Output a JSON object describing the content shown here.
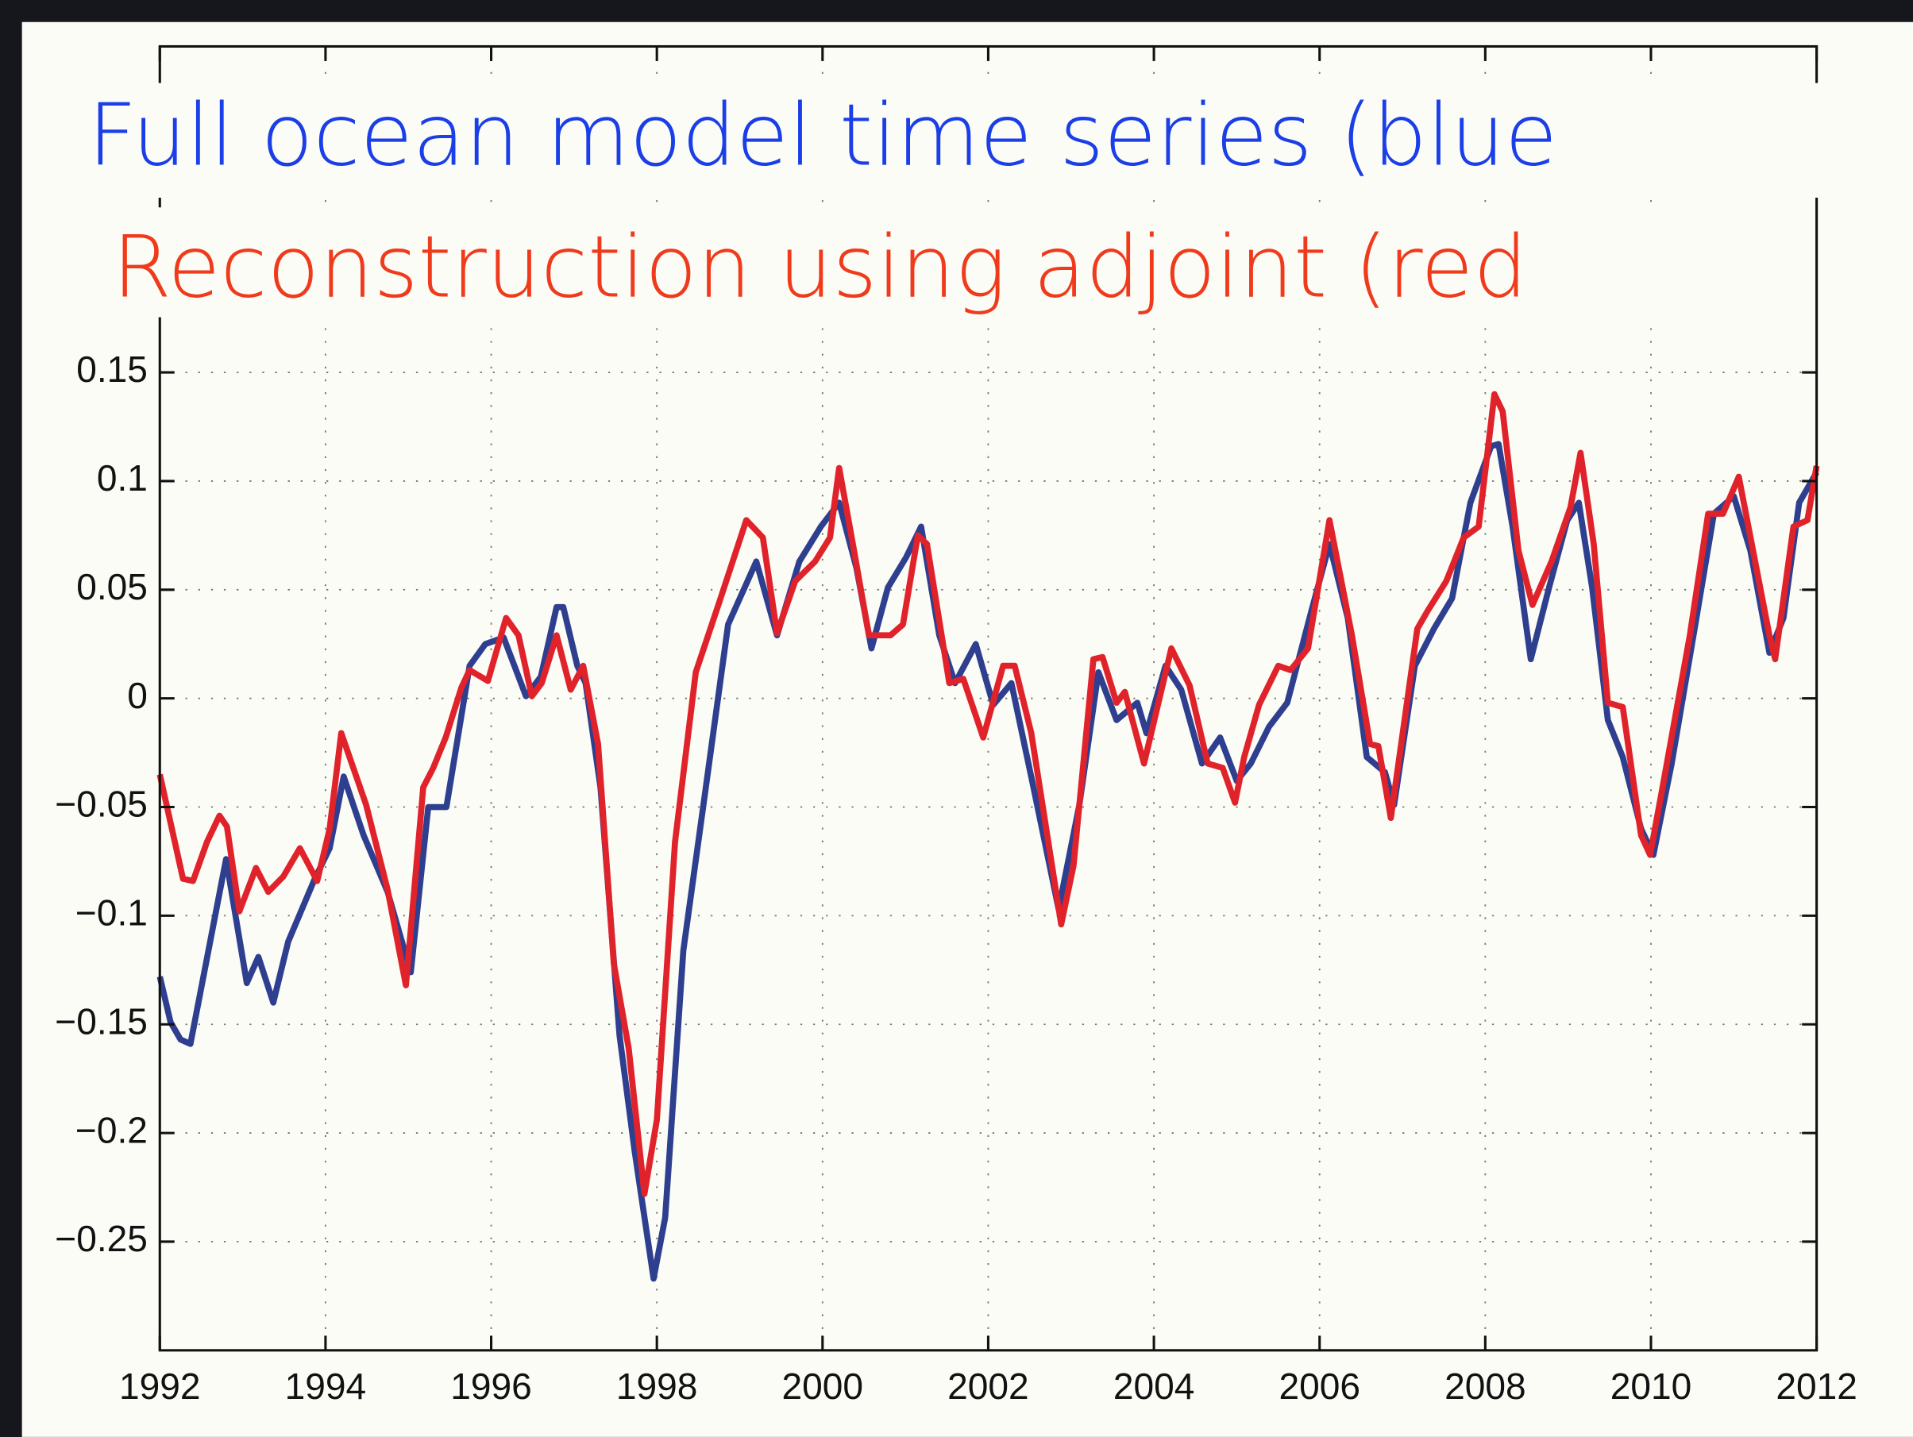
{
  "chart_data": {
    "type": "line",
    "annotations": [
      "Full ocean model time series (blue",
      "Reconstruction using adjoint (red"
    ],
    "annotation_colors": [
      "#1a3ee8",
      "#f03a1c"
    ],
    "xlim": [
      1992,
      2012
    ],
    "xticks": [
      1992,
      1994,
      1996,
      1998,
      2000,
      2002,
      2004,
      2006,
      2008,
      2010,
      2012
    ],
    "ylim": [
      -0.3,
      0.3
    ],
    "yticks": [
      {
        "value": -0.25,
        "label": "−0.25"
      },
      {
        "value": -0.2,
        "label": "−0.2"
      },
      {
        "value": -0.15,
        "label": "−0.15"
      },
      {
        "value": -0.1,
        "label": "−0.1"
      },
      {
        "value": -0.05,
        "label": "−0.05"
      },
      0,
      0.05,
      0.1,
      0.15
    ],
    "grid": true,
    "series": [
      {
        "color": "#2f3f8f",
        "x": [
          1992.0,
          1992.13,
          1992.25,
          1992.37,
          1992.8,
          1993.05,
          1993.19,
          1993.37,
          1993.55,
          1993.87,
          1994.05,
          1994.22,
          1994.46,
          1994.75,
          1995.03,
          1995.24,
          1995.46,
          1995.74,
          1995.93,
          1996.15,
          1996.42,
          1996.6,
          1996.79,
          1996.87,
          1997.04,
          1997.14,
          1997.32,
          1997.55,
          1997.73,
          1997.96,
          1998.1,
          1998.32,
          1998.58,
          1998.86,
          1999.2,
          1999.45,
          1999.72,
          1999.98,
          2000.2,
          2000.41,
          2000.59,
          2000.79,
          2001.01,
          2001.19,
          2001.41,
          2001.6,
          2001.85,
          2002.06,
          2002.28,
          2002.53,
          2002.85,
          2003.1,
          2003.33,
          2003.55,
          2003.8,
          2003.91,
          2004.14,
          2004.33,
          2004.58,
          2004.8,
          2005.0,
          2005.17,
          2005.39,
          2005.61,
          2005.9,
          2006.12,
          2006.34,
          2006.57,
          2006.79,
          2006.9,
          2007.15,
          2007.38,
          2007.6,
          2007.82,
          2008.07,
          2008.16,
          2008.33,
          2008.55,
          2008.77,
          2008.99,
          2009.13,
          2009.29,
          2009.48,
          2009.66,
          2009.88,
          2010.03,
          2010.25,
          2010.54,
          2010.76,
          2011.0,
          2011.2,
          2011.43,
          2011.6,
          2011.79,
          2012.0
        ],
        "values": [
          -0.128,
          -0.149,
          -0.157,
          -0.159,
          -0.074,
          -0.131,
          -0.119,
          -0.14,
          -0.112,
          -0.083,
          -0.069,
          -0.036,
          -0.063,
          -0.089,
          -0.126,
          -0.05,
          -0.05,
          0.015,
          0.025,
          0.028,
          0.001,
          0.01,
          0.042,
          0.042,
          0.015,
          0.007,
          -0.041,
          -0.155,
          -0.208,
          -0.267,
          -0.239,
          -0.116,
          -0.044,
          0.034,
          0.063,
          0.029,
          0.063,
          0.079,
          0.09,
          0.06,
          0.023,
          0.051,
          0.065,
          0.079,
          0.029,
          0.007,
          0.025,
          -0.003,
          0.007,
          -0.038,
          -0.097,
          -0.049,
          0.012,
          -0.01,
          -0.002,
          -0.016,
          0.015,
          0.004,
          -0.03,
          -0.018,
          -0.038,
          -0.03,
          -0.013,
          -0.002,
          0.04,
          0.071,
          0.037,
          -0.027,
          -0.034,
          -0.049,
          0.015,
          0.032,
          0.046,
          0.09,
          0.116,
          0.117,
          0.079,
          0.018,
          0.051,
          0.082,
          0.09,
          0.051,
          -0.01,
          -0.027,
          -0.06,
          -0.072,
          -0.03,
          0.035,
          0.085,
          0.093,
          0.068,
          0.021,
          0.037,
          0.09,
          0.104
        ]
      },
      {
        "color": "#e0232b",
        "x": [
          1992.0,
          1992.28,
          1992.4,
          1992.57,
          1992.72,
          1992.81,
          1992.96,
          1993.16,
          1993.31,
          1993.49,
          1993.69,
          1993.9,
          1994.05,
          1994.19,
          1994.49,
          1994.75,
          1994.97,
          1995.18,
          1995.3,
          1995.45,
          1995.64,
          1995.74,
          1995.96,
          1996.18,
          1996.33,
          1996.49,
          1996.61,
          1996.79,
          1996.96,
          1997.11,
          1997.29,
          1997.48,
          1997.66,
          1997.85,
          1998.0,
          1998.22,
          1998.47,
          1998.76,
          1999.08,
          1999.28,
          1999.45,
          1999.67,
          1999.91,
          2000.09,
          2000.2,
          2000.38,
          2000.56,
          2000.82,
          2000.97,
          2001.15,
          2001.26,
          2001.53,
          2001.7,
          2001.94,
          2002.18,
          2002.32,
          2002.52,
          2002.88,
          2003.03,
          2003.27,
          2003.38,
          2003.55,
          2003.65,
          2003.88,
          2004.21,
          2004.43,
          2004.65,
          2004.83,
          2004.98,
          2005.09,
          2005.27,
          2005.5,
          2005.65,
          2005.86,
          2006.12,
          2006.39,
          2006.61,
          2006.71,
          2006.86,
          2007.18,
          2007.3,
          2007.53,
          2007.74,
          2007.92,
          2008.11,
          2008.21,
          2008.4,
          2008.57,
          2008.8,
          2009.03,
          2009.15,
          2009.31,
          2009.48,
          2009.66,
          2009.88,
          2009.99,
          2010.14,
          2010.47,
          2010.69,
          2010.87,
          2011.06,
          2011.43,
          2011.5,
          2011.72,
          2011.89,
          2012.0
        ],
        "values": [
          -0.035,
          -0.083,
          -0.084,
          -0.066,
          -0.054,
          -0.059,
          -0.098,
          -0.078,
          -0.089,
          -0.082,
          -0.069,
          -0.084,
          -0.06,
          -0.016,
          -0.049,
          -0.088,
          -0.132,
          -0.041,
          -0.032,
          -0.018,
          0.005,
          0.013,
          0.008,
          0.037,
          0.029,
          0.001,
          0.007,
          0.029,
          0.004,
          0.015,
          -0.021,
          -0.122,
          -0.161,
          -0.228,
          -0.194,
          -0.066,
          0.012,
          0.045,
          0.082,
          0.074,
          0.03,
          0.054,
          0.063,
          0.074,
          0.106,
          0.068,
          0.029,
          0.029,
          0.034,
          0.075,
          0.071,
          0.007,
          0.009,
          -0.018,
          0.015,
          0.015,
          -0.016,
          -0.104,
          -0.077,
          0.018,
          0.019,
          -0.002,
          0.003,
          -0.03,
          0.023,
          0.006,
          -0.03,
          -0.032,
          -0.048,
          -0.027,
          -0.003,
          0.015,
          0.013,
          0.023,
          0.082,
          0.029,
          -0.021,
          -0.022,
          -0.055,
          0.032,
          0.04,
          0.054,
          0.074,
          0.079,
          0.14,
          0.132,
          0.068,
          0.043,
          0.063,
          0.088,
          0.113,
          0.071,
          -0.002,
          -0.004,
          -0.063,
          -0.072,
          -0.041,
          0.029,
          0.085,
          0.085,
          0.102,
          0.029,
          0.018,
          0.079,
          0.082,
          0.107
        ]
      }
    ]
  }
}
